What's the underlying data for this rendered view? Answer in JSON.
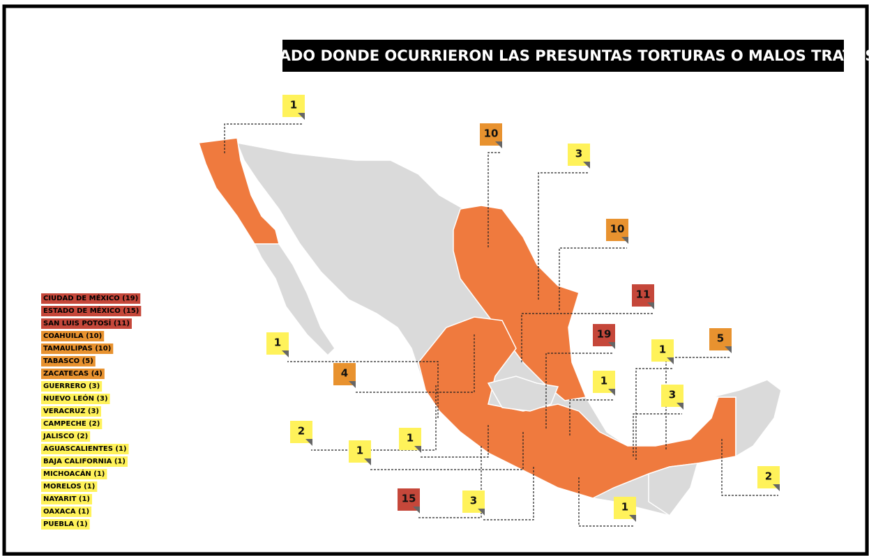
{
  "title": "ESTADO DONDE OCURRIERON LAS PRESUNTAS TORTURAS O MALOS TRATOS",
  "legend": [
    {
      "text": "CIUDAD DE MÉXICO (19)",
      "color": "#c5473a"
    },
    {
      "text": "ESTADO DE MÉXICO (15)",
      "color": "#c5473a"
    },
    {
      "text": "SAN LUIS POTOSÍ (11)",
      "color": "#c5473a"
    },
    {
      "text": "COAHUILA (10)",
      "color": "#e8922f"
    },
    {
      "text": "TAMAULIPAS (10)",
      "color": "#e8922f"
    },
    {
      "text": "TABASCO (5)",
      "color": "#e8922f"
    },
    {
      "text": "ZACATECAS (4)",
      "color": "#e8922f"
    },
    {
      "text": "GUERRERO (3)",
      "color": "#fff25a"
    },
    {
      "text": "NUEVO LEÓN (3)",
      "color": "#fff25a"
    },
    {
      "text": "VERACRUZ (3)",
      "color": "#fff25a"
    },
    {
      "text": "CAMPECHE (2)",
      "color": "#fff25a"
    },
    {
      "text": "JALISCO (2)",
      "color": "#fff25a"
    },
    {
      "text": "AGUASCALIENTES (1)",
      "color": "#fff25a"
    },
    {
      "text": "BAJA CALIFORNIA (1)",
      "color": "#fff25a"
    },
    {
      "text": "MICHOACÁN (1)",
      "color": "#fff25a"
    },
    {
      "text": "MORELOS (1)",
      "color": "#fff25a"
    },
    {
      "text": "NAYARIT (1)",
      "color": "#fff25a"
    },
    {
      "text": "OAXACA (1)",
      "color": "#fff25a"
    },
    {
      "text": "PUEBLA (1)",
      "color": "#fff25a"
    }
  ],
  "callouts": [
    {
      "value": 1,
      "color": "#fff25a"
    },
    {
      "value": 10,
      "color": "#e8922f"
    },
    {
      "value": 3,
      "color": "#fff25a"
    },
    {
      "value": 10,
      "color": "#e8922f"
    },
    {
      "value": 11,
      "color": "#c5473a"
    },
    {
      "value": 19,
      "color": "#c5473a"
    },
    {
      "value": 5,
      "color": "#e8922f"
    },
    {
      "value": 1,
      "color": "#fff25a"
    },
    {
      "value": 4,
      "color": "#e8922f"
    },
    {
      "value": 1,
      "color": "#fff25a"
    },
    {
      "value": 1,
      "color": "#fff25a"
    },
    {
      "value": 2,
      "color": "#fff25a"
    },
    {
      "value": 3,
      "color": "#fff25a"
    },
    {
      "value": 1,
      "color": "#fff25a"
    },
    {
      "value": 1,
      "color": "#fff25a"
    },
    {
      "value": 2,
      "color": "#fff25a"
    },
    {
      "value": 15,
      "color": "#c5473a"
    },
    {
      "value": 3,
      "color": "#fff25a"
    },
    {
      "value": 1,
      "color": "#fff25a"
    }
  ]
}
